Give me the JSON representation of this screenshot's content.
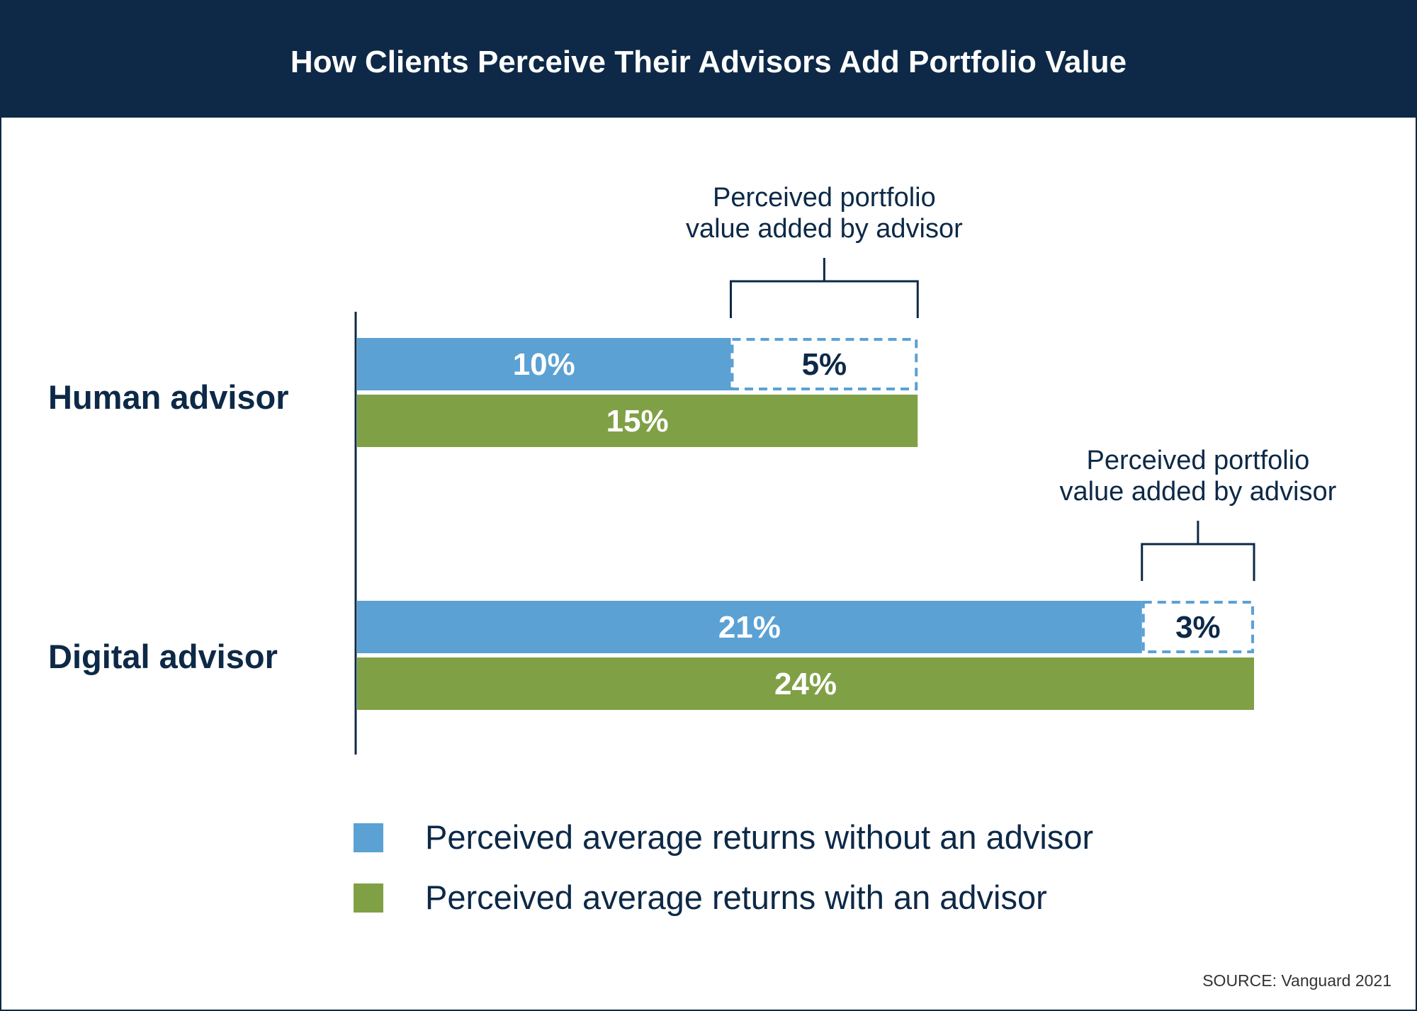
{
  "chart_data": {
    "type": "bar",
    "title": "How Clients Perceive Their Advisors Add Portfolio Value",
    "categories": [
      "Human advisor",
      "Digital advisor"
    ],
    "series": [
      {
        "name": "Perceived average returns without an advisor",
        "values": [
          10,
          21
        ],
        "labels": [
          "10%",
          "21%"
        ],
        "color": "#5ba1d4"
      },
      {
        "name": "Perceived average returns with an advisor",
        "values": [
          15,
          24
        ],
        "labels": [
          "15%",
          "24%"
        ],
        "color": "#80a046"
      }
    ],
    "difference": {
      "values": [
        5,
        3
      ],
      "labels": [
        "5%",
        "3%"
      ],
      "annotation": [
        "Perceived portfolio",
        "value added by advisor"
      ]
    },
    "xlim": [
      0,
      24
    ],
    "grid": false,
    "legend": "bottom",
    "source": "SOURCE: Vanguard 2021",
    "colors": {
      "navy": "#0d2947",
      "blue": "#5ba1d4",
      "green": "#80a046"
    }
  }
}
